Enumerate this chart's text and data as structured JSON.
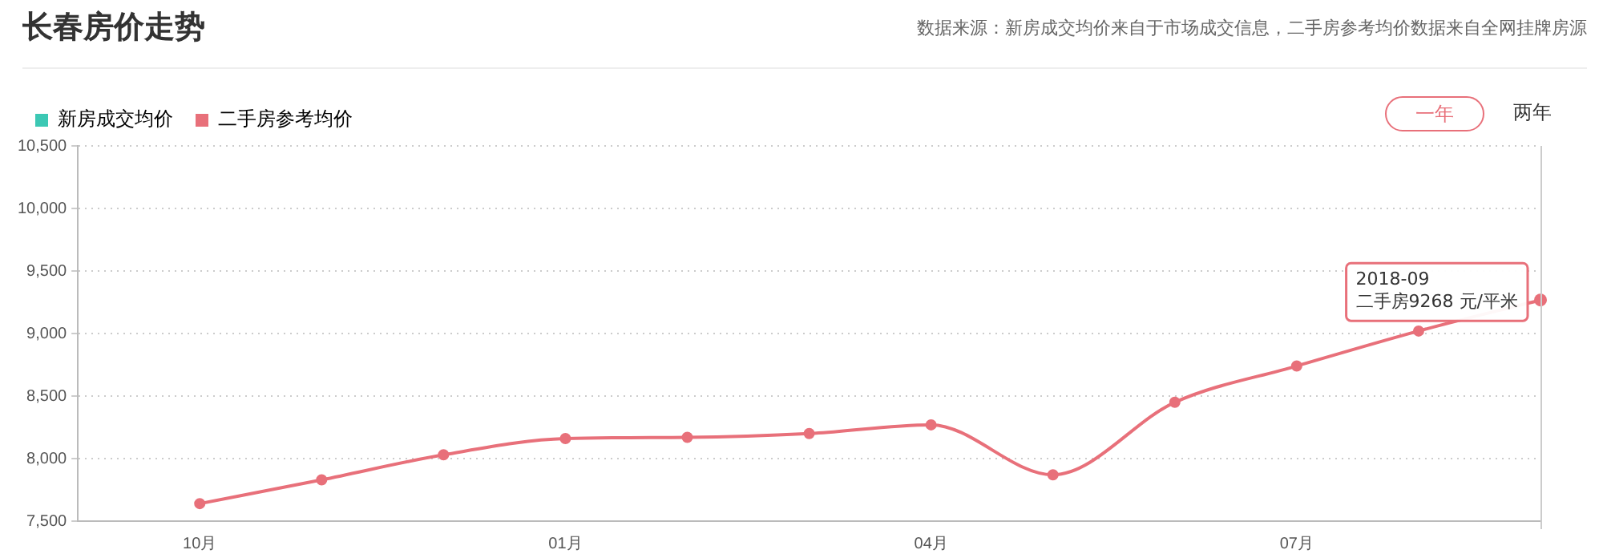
{
  "chart_data": {
    "type": "line",
    "title": "长春房价走势",
    "annotations": [
      "数据来源：新房成交均价来自于市场成交信息，二手房参考均价数据来自全网挂牌房源",
      "一年",
      "两年",
      "2018-09\n二手房9268 元/平米"
    ],
    "categories": [
      null,
      "10月",
      null,
      null,
      "01月",
      null,
      null,
      "04月",
      null,
      null,
      "07月",
      null,
      null
    ],
    "series": [
      {
        "name": "新房成交均价",
        "color": "#3cc8b4",
        "values": [
          null,
          null,
          null,
          null,
          null,
          null,
          null,
          null,
          null,
          null,
          null,
          null,
          null
        ]
      },
      {
        "name": "二手房参考均价",
        "color": "#e8707a",
        "values": [
          null,
          7640,
          7830,
          8030,
          8160,
          8170,
          8200,
          8270,
          7870,
          8450,
          8740,
          9020,
          9268
        ]
      }
    ],
    "ylim": [
      7500,
      10500
    ],
    "yticks": [
      {
        "value": 7500,
        "label": "7,500"
      },
      {
        "value": 8000,
        "label": "8,000"
      },
      {
        "value": 8500,
        "label": "8,500"
      },
      {
        "value": 9000,
        "label": "9,000"
      },
      {
        "value": 9500,
        "label": "9,500"
      },
      {
        "value": 10000,
        "label": "10,000"
      },
      {
        "value": 10500,
        "label": "10,500"
      }
    ],
    "grid": "y",
    "legend": "top left",
    "marker": "circle",
    "line_style": "solid"
  }
}
